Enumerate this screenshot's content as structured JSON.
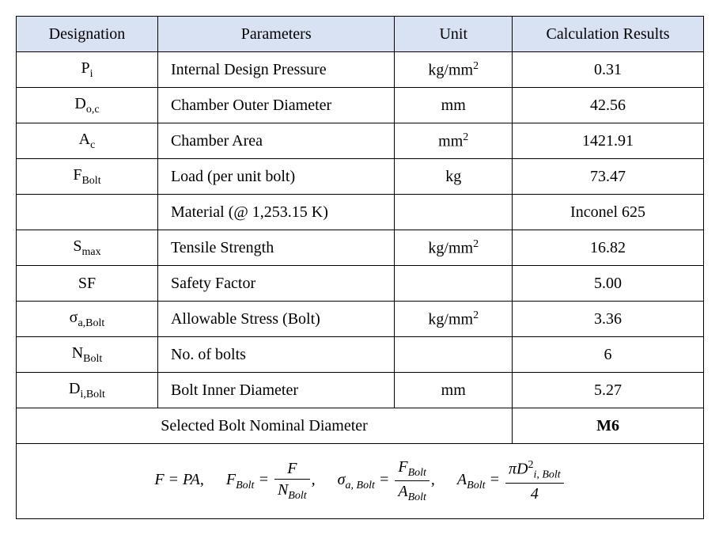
{
  "headers": {
    "designation": "Designation",
    "parameters": "Parameters",
    "unit": "Unit",
    "result": "Calculation Results"
  },
  "rows": [
    {
      "designation_html": "P<span class=\"sub\">i</span>",
      "parameter": "Internal Design Pressure",
      "unit_html": "kg/mm<span class=\"sup\">2</span>",
      "result": "0.31"
    },
    {
      "designation_html": "D<span class=\"sub\">o,c</span>",
      "parameter": "Chamber Outer Diameter",
      "unit_html": "mm",
      "result": "42.56"
    },
    {
      "designation_html": "A<span class=\"sub\">c</span>",
      "parameter": "Chamber Area",
      "unit_html": "mm<span class=\"sup\">2</span>",
      "result": "1421.91"
    },
    {
      "designation_html": "F<span class=\"sub\">Bolt</span>",
      "parameter": "Load (per unit bolt)",
      "unit_html": "kg",
      "result": "73.47"
    },
    {
      "designation_html": "",
      "parameter": "Material (@ 1,253.15 K)",
      "unit_html": "",
      "result": "Inconel 625"
    },
    {
      "designation_html": "S<span class=\"sub\">max</span>",
      "parameter": "Tensile Strength",
      "unit_html": "kg/mm<span class=\"sup\">2</span>",
      "result": "16.82"
    },
    {
      "designation_html": "SF",
      "parameter": "Safety Factor",
      "unit_html": "",
      "result": "5.00"
    },
    {
      "designation_html": "σ<span class=\"sub\">a,Bolt</span>",
      "parameter": "Allowable Stress (Bolt)",
      "unit_html": "kg/mm<span class=\"sup\">2</span>",
      "result": "3.36"
    },
    {
      "designation_html": "N<span class=\"sub\">Bolt</span>",
      "parameter": "No. of bolts",
      "unit_html": "",
      "result": "6"
    },
    {
      "designation_html": "D<span class=\"sub\">i,Bolt</span>",
      "parameter": "Bolt Inner Diameter",
      "unit_html": "mm",
      "result": "5.27"
    }
  ],
  "footer_label": "Selected Bolt Nominal Diameter",
  "footer_value": "M6",
  "formula_parts": {
    "eq1_lhs": "F",
    "eq1_rhs": "PA",
    "eq2_lhs_html": "F<span class=\"sub-it\">Bolt</span>",
    "eq2_num": "F",
    "eq2_den_html": "N<span class=\"sub-it\">Bolt</span>",
    "eq3_lhs_html": "σ<span class=\"sub-it\">a, Bolt</span>",
    "eq3_num_html": "F<span class=\"sub-it\">Bolt</span>",
    "eq3_den_html": "A<span class=\"sub-it\">Bolt</span>",
    "eq4_lhs_html": "A<span class=\"sub-it\">Bolt</span>",
    "eq4_num_html": "πD<span class=\"sup\">2</span><span class=\"sub-it\">i, Bolt</span>",
    "eq4_den": "4"
  },
  "style": {
    "header_bg": "#d9e2f3",
    "border_color": "#000000",
    "font_size_pt": 15,
    "font_family": "Times New Roman"
  }
}
